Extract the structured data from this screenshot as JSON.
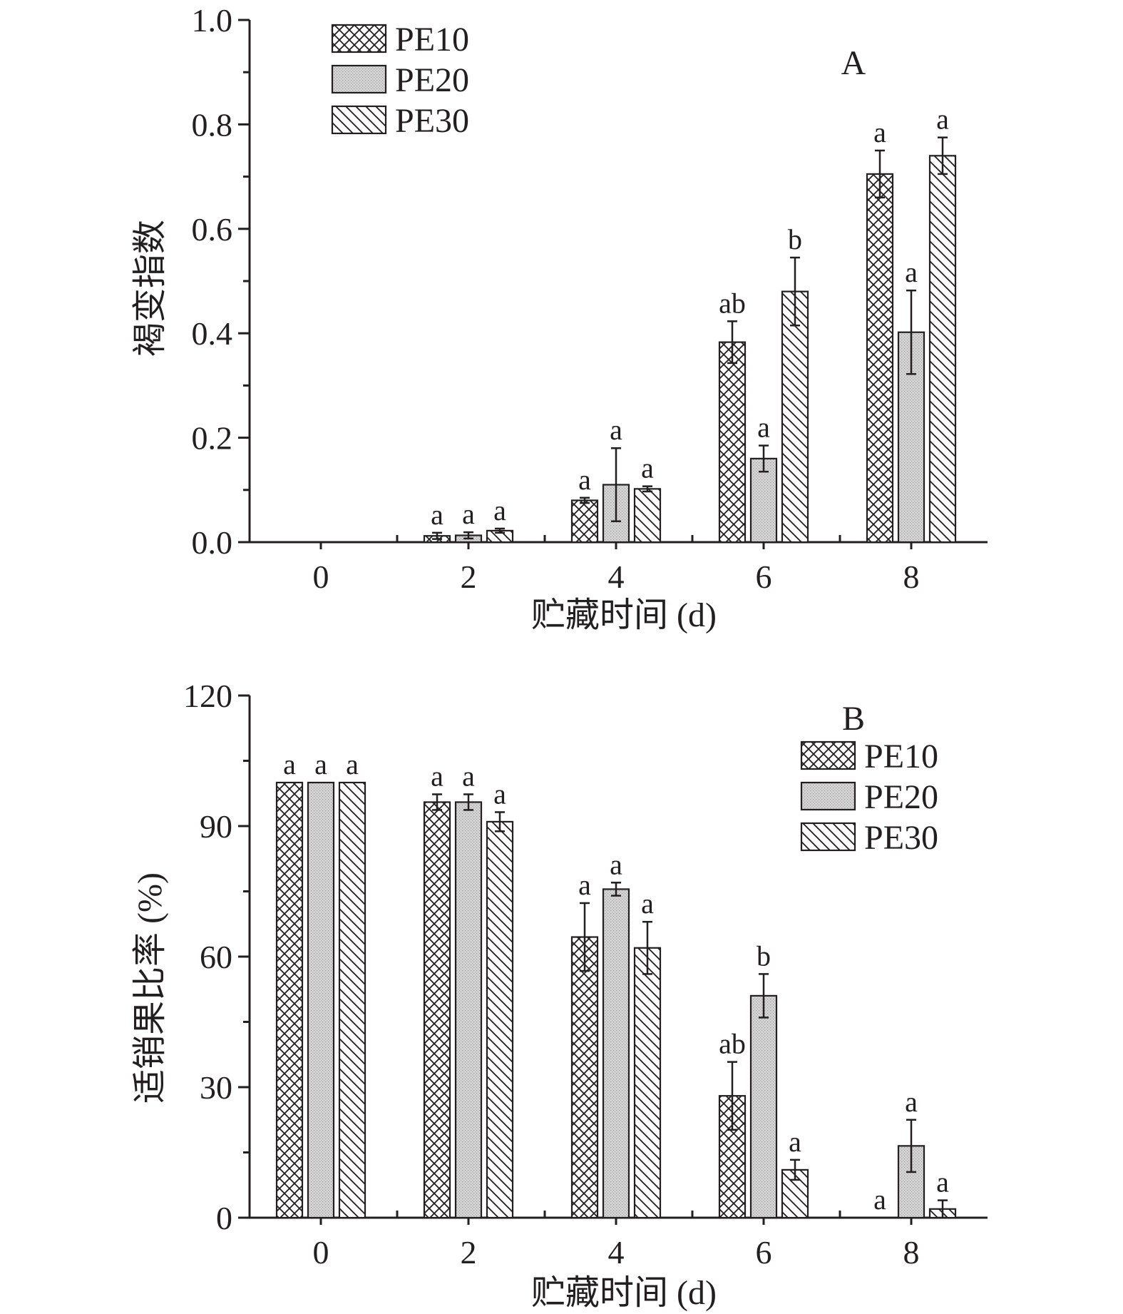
{
  "chart_data": [
    {
      "type": "bar",
      "panel_label": "A",
      "xlabel": "贮藏时间 (d)",
      "ylabel": "褐变指数",
      "categories": [
        "0",
        "2",
        "4",
        "6",
        "8"
      ],
      "ylim": [
        0,
        1.0
      ],
      "yticks": [
        "0.0",
        "0.2",
        "0.4",
        "0.6",
        "0.8",
        "1.0"
      ],
      "legend_position": "top-left",
      "series": [
        {
          "name": "PE10",
          "pattern": "crosshatch",
          "values": [
            0,
            0.012,
            0.08,
            0.383,
            0.705
          ],
          "errors": [
            0,
            0.006,
            0.005,
            0.04,
            0.045
          ],
          "labels": [
            "",
            "a",
            "a",
            "ab",
            "a"
          ]
        },
        {
          "name": "PE20",
          "pattern": "dotted-gray",
          "values": [
            0,
            0.013,
            0.11,
            0.16,
            0.402
          ],
          "errors": [
            0,
            0.006,
            0.07,
            0.025,
            0.08
          ],
          "labels": [
            "",
            "a",
            "a",
            "a",
            "a"
          ]
        },
        {
          "name": "PE30",
          "pattern": "diagonal",
          "values": [
            0,
            0.022,
            0.102,
            0.48,
            0.74
          ],
          "errors": [
            0,
            0.004,
            0.005,
            0.065,
            0.035
          ],
          "labels": [
            "",
            "a",
            "a",
            "b",
            "a"
          ]
        }
      ]
    },
    {
      "type": "bar",
      "panel_label": "B",
      "xlabel": "贮藏时间 (d)",
      "ylabel": "适销果比率 (%)",
      "categories": [
        "0",
        "2",
        "4",
        "6",
        "8"
      ],
      "ylim": [
        0,
        120
      ],
      "yticks": [
        "0",
        "30",
        "60",
        "90",
        "120"
      ],
      "legend_position": "top-right",
      "series": [
        {
          "name": "PE10",
          "pattern": "crosshatch",
          "values": [
            100,
            95.5,
            64.5,
            28,
            0
          ],
          "errors": [
            0,
            1.8,
            7.8,
            7.8,
            0
          ],
          "labels": [
            "a",
            "a",
            "a",
            "ab",
            "a"
          ]
        },
        {
          "name": "PE20",
          "pattern": "dotted-gray",
          "values": [
            100,
            95.5,
            75.5,
            51,
            16.5
          ],
          "errors": [
            0,
            1.8,
            1.5,
            5,
            6
          ],
          "labels": [
            "a",
            "a",
            "a",
            "b",
            "a"
          ]
        },
        {
          "name": "PE30",
          "pattern": "diagonal",
          "values": [
            100,
            91,
            62,
            11,
            2
          ],
          "errors": [
            0,
            2.2,
            6,
            2.3,
            2
          ],
          "labels": [
            "a",
            "a",
            "a",
            "a",
            "a"
          ]
        }
      ]
    }
  ]
}
